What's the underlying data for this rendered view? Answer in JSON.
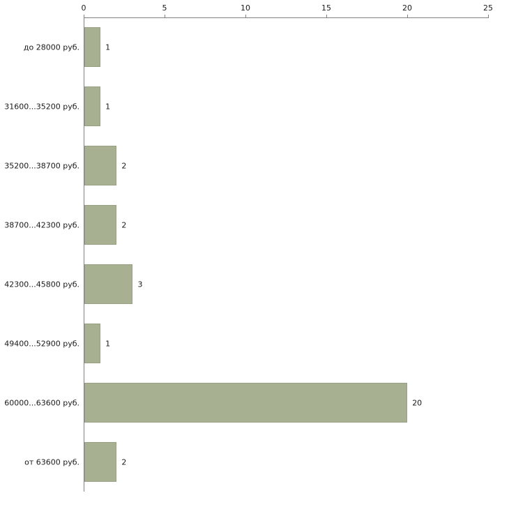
{
  "chart_data": {
    "type": "bar",
    "orientation": "horizontal",
    "title": "",
    "xlabel": "",
    "ylabel": "",
    "categories": [
      "до 28000 руб.",
      "31600...35200 руб.",
      "35200...38700 руб.",
      "38700...42300 руб.",
      "42300...45800 руб.",
      "49400...52900 руб.",
      "60000...63600 руб.",
      "от 63600 руб."
    ],
    "values": [
      1,
      1,
      2,
      2,
      3,
      1,
      20,
      2
    ],
    "xlim": [
      0,
      25
    ],
    "xticks": [
      0,
      5,
      10,
      15,
      20,
      25
    ],
    "grid": false,
    "legend": "none",
    "colors": {
      "bar_fill": "#a8b092",
      "bar_border": "#97a083",
      "axis": "#808080",
      "text": "#1a1a1a",
      "background": "#ffffff"
    }
  }
}
